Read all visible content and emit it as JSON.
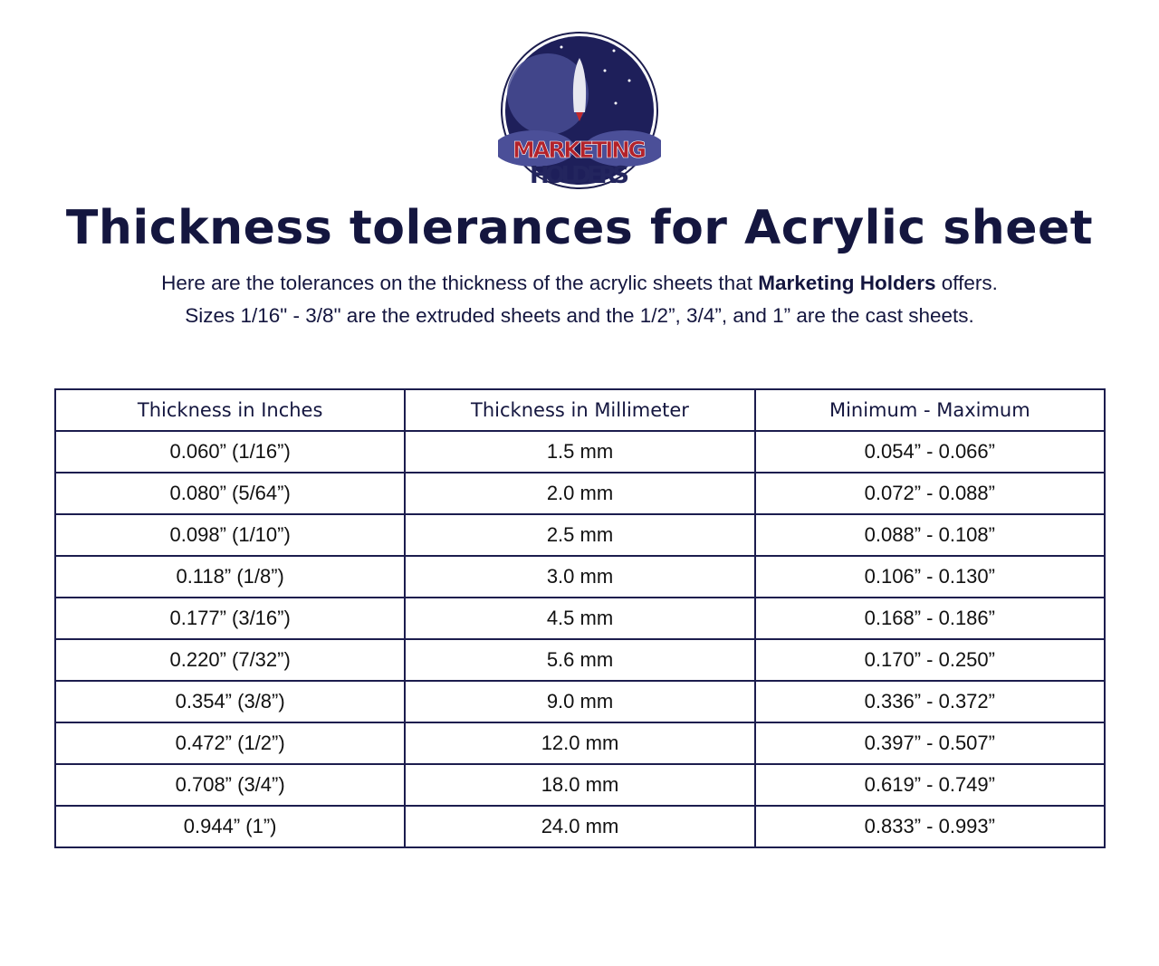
{
  "logo": {
    "line1": "MARKETING",
    "line2": "HOLDERS"
  },
  "title": "Thickness tolerances for Acrylic sheet",
  "subtitle": {
    "line1_pre": "Here are the tolerances on the thickness of the acrylic sheets that ",
    "line1_bold": "Marketing Holders",
    "line1_post": " offers.",
    "line2": "Sizes 1/16\" - 3/8\" are the extruded sheets and the 1/2”, 3/4”, and 1” are the cast sheets."
  },
  "table": {
    "headers": [
      "Thickness in Inches",
      "Thickness in Millimeter",
      "Minimum - Maximum"
    ],
    "rows": [
      [
        "0.060” (1/16”)",
        "1.5 mm",
        "0.054” - 0.066”"
      ],
      [
        "0.080” (5/64”)",
        "2.0 mm",
        "0.072” - 0.088”"
      ],
      [
        "0.098” (1/10”)",
        "2.5 mm",
        "0.088” - 0.108”"
      ],
      [
        "0.118” (1/8”)",
        "3.0 mm",
        "0.106” - 0.130”"
      ],
      [
        "0.177” (3/16”)",
        "4.5 mm",
        "0.168” - 0.186”"
      ],
      [
        "0.220” (7/32”)",
        "5.6 mm",
        "0.170” - 0.250”"
      ],
      [
        "0.354” (3/8”)",
        "9.0 mm",
        "0.336” - 0.372”"
      ],
      [
        "0.472” (1/2”)",
        "12.0 mm",
        "0.397” - 0.507”"
      ],
      [
        "0.708” (3/4”)",
        "18.0 mm",
        "0.619” - 0.749”"
      ],
      [
        "0.944” (1”)",
        "24.0 mm",
        "0.833” - 0.993”"
      ]
    ]
  }
}
